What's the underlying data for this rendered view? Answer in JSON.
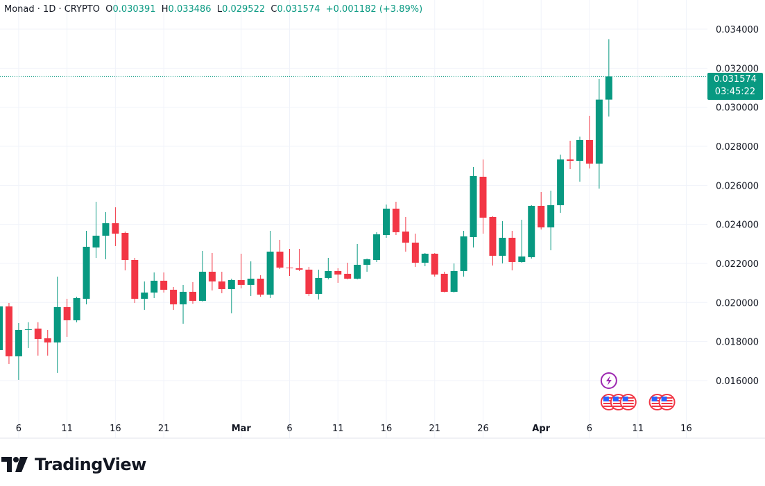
{
  "legend": {
    "symbol": "Monad",
    "sep1": " · ",
    "interval": "1D",
    "sep2": " · ",
    "exchange": "CRYPTO",
    "o_label": "O",
    "o_value": "0.030391",
    "h_label": "H",
    "h_value": "0.033486",
    "l_label": "L",
    "l_value": "0.029522",
    "c_label": "C",
    "c_value": "0.031574",
    "change": "+0.001182 (+3.89%)"
  },
  "price_badge": {
    "price": "0.031574",
    "countdown": "03:45:22"
  },
  "brand": "TradingView",
  "colors": {
    "up": "#089981",
    "down": "#f23645",
    "grid": "#f0f3fa",
    "text": "#131722"
  },
  "chart_data": {
    "type": "candlestick",
    "title": "",
    "interval": "1D",
    "ylim": [
      0.0148,
      0.0352
    ],
    "grid": true,
    "y_ticks": [
      "0.016000",
      "0.018000",
      "0.020000",
      "0.022000",
      "0.024000",
      "0.026000",
      "0.028000",
      "0.030000",
      "0.032000",
      "0.034000"
    ],
    "x_ticks": [
      {
        "date": "02-06",
        "label": "6"
      },
      {
        "date": "02-11",
        "label": "11"
      },
      {
        "date": "02-16",
        "label": "16"
      },
      {
        "date": "02-21",
        "label": "21"
      },
      {
        "date": "03-01",
        "label": "Mar"
      },
      {
        "date": "03-06",
        "label": "6"
      },
      {
        "date": "03-11",
        "label": "11"
      },
      {
        "date": "03-16",
        "label": "16"
      },
      {
        "date": "03-21",
        "label": "21"
      },
      {
        "date": "03-26",
        "label": "26"
      },
      {
        "date": "04-01",
        "label": "Apr"
      },
      {
        "date": "04-06",
        "label": "6"
      },
      {
        "date": "04-11",
        "label": "11"
      },
      {
        "date": "04-16",
        "label": "16"
      }
    ],
    "last_price": 0.031574,
    "columns": [
      "date",
      "open",
      "high",
      "low",
      "close"
    ],
    "candles": [
      [
        "02-04",
        0.017563,
        0.019871,
        0.017386,
        0.0198
      ],
      [
        "02-05",
        0.0198,
        0.019977,
        0.016853,
        0.017244
      ],
      [
        "02-06",
        0.017244,
        0.018948,
        0.016037,
        0.018593
      ],
      [
        "02-07",
        0.018593,
        0.018989,
        0.01767,
        0.018629
      ],
      [
        "02-08",
        0.018664,
        0.018989,
        0.01728,
        0.018131
      ],
      [
        "02-09",
        0.018167,
        0.018593,
        0.01728,
        0.017954
      ],
      [
        "02-10",
        0.017954,
        0.021326,
        0.016392,
        0.019765
      ],
      [
        "02-11",
        0.019765,
        0.02019,
        0.018238,
        0.01909
      ],
      [
        "02-12",
        0.01909,
        0.020297,
        0.018984,
        0.020226
      ],
      [
        "02-13",
        0.02019,
        0.023669,
        0.019906,
        0.022853
      ],
      [
        "02-14",
        0.022818,
        0.02516,
        0.022285,
        0.023421
      ],
      [
        "02-15",
        0.023421,
        0.024628,
        0.022214,
        0.02406
      ],
      [
        "02-16",
        0.02406,
        0.024876,
        0.022889,
        0.023527
      ],
      [
        "02-17",
        0.023563,
        0.023634,
        0.021646,
        0.022178
      ],
      [
        "02-18",
        0.022178,
        0.022285,
        0.019977,
        0.02019
      ],
      [
        "02-19",
        0.02019,
        0.021078,
        0.019623,
        0.02051
      ],
      [
        "02-20",
        0.02051,
        0.02154,
        0.020226,
        0.021114
      ],
      [
        "02-21",
        0.021114,
        0.02154,
        0.02051,
        0.020652
      ],
      [
        "02-22",
        0.020652,
        0.020794,
        0.019623,
        0.019906
      ],
      [
        "02-23",
        0.019906,
        0.020901,
        0.018913,
        0.020546
      ],
      [
        "02-24",
        0.020546,
        0.021043,
        0.019942,
        0.020084
      ],
      [
        "02-25",
        0.020084,
        0.02264,
        0.02005,
        0.021575
      ],
      [
        "02-26",
        0.021575,
        0.022534,
        0.020616,
        0.021078
      ],
      [
        "02-27",
        0.021078,
        0.021575,
        0.020474,
        0.020687
      ],
      [
        "02-28",
        0.020687,
        0.02122,
        0.019445,
        0.021149
      ],
      [
        "03-01",
        0.021149,
        0.022498,
        0.020723,
        0.020901
      ],
      [
        "03-02",
        0.020901,
        0.022108,
        0.020332,
        0.02122
      ],
      [
        "03-03",
        0.02122,
        0.021397,
        0.020297,
        0.020404
      ],
      [
        "03-04",
        0.020404,
        0.023669,
        0.020226,
        0.022605
      ],
      [
        "03-05",
        0.022605,
        0.023208,
        0.021717,
        0.021788
      ],
      [
        "03-06",
        0.021788,
        0.022746,
        0.021362,
        0.021753
      ],
      [
        "03-07",
        0.021753,
        0.022746,
        0.021611,
        0.021682
      ],
      [
        "03-08",
        0.021682,
        0.021824,
        0.020332,
        0.020439
      ],
      [
        "03-09",
        0.020439,
        0.021682,
        0.020155,
        0.021256
      ],
      [
        "03-10",
        0.021256,
        0.022285,
        0.021185,
        0.021611
      ],
      [
        "03-11",
        0.021611,
        0.021753,
        0.021007,
        0.021433
      ],
      [
        "03-12",
        0.021469,
        0.022037,
        0.021185,
        0.02122
      ],
      [
        "03-13",
        0.02122,
        0.022995,
        0.021185,
        0.02193
      ],
      [
        "03-14",
        0.02193,
        0.02225,
        0.021575,
        0.022214
      ],
      [
        "03-15",
        0.022178,
        0.023599,
        0.022072,
        0.023492
      ],
      [
        "03-16",
        0.023456,
        0.025018,
        0.023314,
        0.024806
      ],
      [
        "03-17",
        0.024806,
        0.02516,
        0.023456,
        0.023599
      ],
      [
        "03-18",
        0.023634,
        0.02438,
        0.022605,
        0.023066
      ],
      [
        "03-19",
        0.023066,
        0.023527,
        0.021824,
        0.022037
      ],
      [
        "03-20",
        0.022037,
        0.022534,
        0.021859,
        0.022498
      ],
      [
        "03-21",
        0.022498,
        0.02253,
        0.021326,
        0.021433
      ],
      [
        "03-22",
        0.021469,
        0.021575,
        0.02052,
        0.020546
      ],
      [
        "03-23",
        0.020546,
        0.022001,
        0.02051,
        0.021611
      ],
      [
        "03-24",
        0.021611,
        0.023669,
        0.021326,
        0.023385
      ],
      [
        "03-25",
        0.02335,
        0.026936,
        0.022818,
        0.026474
      ],
      [
        "03-26",
        0.026439,
        0.027326,
        0.023527,
        0.024344
      ],
      [
        "03-27",
        0.02438,
        0.024415,
        0.021894,
        0.022392
      ],
      [
        "03-28",
        0.022392,
        0.024167,
        0.022001,
        0.023314
      ],
      [
        "03-29",
        0.023314,
        0.023669,
        0.021646,
        0.022072
      ],
      [
        "03-30",
        0.022072,
        0.024238,
        0.022037,
        0.022357
      ],
      [
        "03-31",
        0.022321,
        0.024983,
        0.02225,
        0.024948
      ],
      [
        "04-01",
        0.024948,
        0.025658,
        0.02374,
        0.023847
      ],
      [
        "04-02",
        0.023847,
        0.025728,
        0.022675,
        0.024983
      ],
      [
        "04-03",
        0.024983,
        0.027574,
        0.024593,
        0.027326
      ],
      [
        "04-04",
        0.027326,
        0.028284,
        0.026829,
        0.027255
      ],
      [
        "04-05",
        0.027255,
        0.028498,
        0.02619,
        0.02832
      ],
      [
        "04-06",
        0.02832,
        0.029562,
        0.026864,
        0.027113
      ],
      [
        "04-07",
        0.027113,
        0.031444,
        0.025835,
        0.030391
      ],
      [
        "04-08",
        0.030391,
        0.033486,
        0.029522,
        0.031574
      ]
    ],
    "events": [
      {
        "date": "04-08",
        "icon": "lightning-icon",
        "color": "#9c27b0",
        "row": 0
      },
      {
        "date": "04-08",
        "icon": "us-flag-icon",
        "row": 1
      },
      {
        "date": "04-09",
        "icon": "us-flag-icon",
        "row": 1
      },
      {
        "date": "04-10",
        "icon": "us-flag-icon",
        "row": 1
      },
      {
        "date": "04-13",
        "icon": "us-flag-icon",
        "row": 1
      },
      {
        "date": "04-14",
        "icon": "us-flag-icon",
        "row": 1
      }
    ]
  }
}
